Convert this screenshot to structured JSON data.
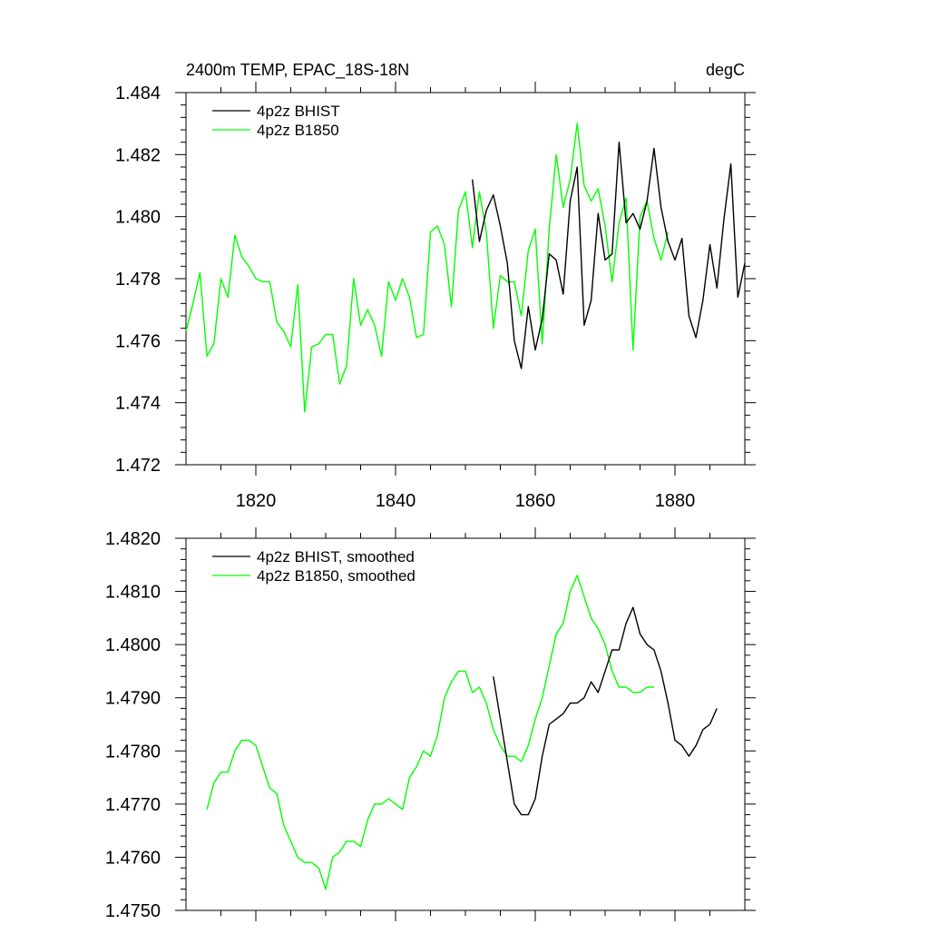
{
  "chart_data": [
    {
      "type": "line",
      "title": "2400m TEMP, EPAC_18S-18N",
      "units": "degC",
      "xlabel": "",
      "ylabel": "",
      "xlim": [
        1810,
        1890
      ],
      "ylim": [
        1.472,
        1.484
      ],
      "x_ticks": [
        1820,
        1840,
        1860,
        1880
      ],
      "x_tick_labels": [
        "1820",
        "1840",
        "1860",
        "1880"
      ],
      "y_ticks": [
        1.472,
        1.474,
        1.476,
        1.478,
        1.48,
        1.482,
        1.484
      ],
      "y_tick_labels": [
        "1.472",
        "1.474",
        "1.476",
        "1.478",
        "1.480",
        "1.482",
        "1.484"
      ],
      "legend": "top-left",
      "series": [
        {
          "name": "4p2z BHIST",
          "color": "#000000",
          "x_start": 1851,
          "x_step": 1,
          "values": [
            1.4812,
            1.4792,
            1.4802,
            1.4807,
            1.4797,
            1.4785,
            1.476,
            1.4751,
            1.4771,
            1.4757,
            1.4767,
            1.4788,
            1.4786,
            1.4775,
            1.4805,
            1.4816,
            1.4765,
            1.4773,
            1.4801,
            1.4786,
            1.4788,
            1.4824,
            1.4798,
            1.4801,
            1.4796,
            1.4805,
            1.4822,
            1.4803,
            1.4792,
            1.4786,
            1.4793,
            1.4768,
            1.4761,
            1.4773,
            1.4791,
            1.4777,
            1.4799,
            1.4817,
            1.4774,
            1.4785
          ]
        },
        {
          "name": "4p2z B1850",
          "color": "#00ff00",
          "x_start": 1810,
          "x_step": 1,
          "values": [
            1.4763,
            1.4772,
            1.4782,
            1.4755,
            1.4759,
            1.478,
            1.4774,
            1.4794,
            1.4787,
            1.4784,
            1.478,
            1.4779,
            1.4779,
            1.4766,
            1.4763,
            1.4758,
            1.4778,
            1.4737,
            1.4758,
            1.4759,
            1.4762,
            1.4762,
            1.4746,
            1.4752,
            1.478,
            1.4765,
            1.477,
            1.4765,
            1.4755,
            1.4779,
            1.4773,
            1.478,
            1.4774,
            1.4761,
            1.4762,
            1.4795,
            1.4797,
            1.4791,
            1.4771,
            1.4802,
            1.4808,
            1.479,
            1.4808,
            1.4795,
            1.4764,
            1.4781,
            1.4779,
            1.4779,
            1.4768,
            1.4789,
            1.4796,
            1.4759,
            1.4796,
            1.482,
            1.4803,
            1.4812,
            1.483,
            1.481,
            1.4805,
            1.4809,
            1.4797,
            1.4779,
            1.4798,
            1.4806,
            1.4757,
            1.48,
            1.4805,
            1.4793,
            1.4786,
            1.4795
          ]
        }
      ]
    },
    {
      "type": "line",
      "title": "",
      "xlabel": "",
      "ylabel": "",
      "xlim": [
        1810,
        1890
      ],
      "ylim": [
        1.475,
        1.482
      ],
      "x_ticks": [
        1820,
        1840,
        1860,
        1880
      ],
      "x_tick_labels": [],
      "y_ticks": [
        1.475,
        1.476,
        1.477,
        1.478,
        1.479,
        1.48,
        1.481,
        1.482
      ],
      "y_tick_labels": [
        "1.4750",
        "1.4760",
        "1.4770",
        "1.4780",
        "1.4790",
        "1.4800",
        "1.4810",
        "1.4820"
      ],
      "legend": "top-left",
      "series": [
        {
          "name": "4p2z BHIST, smoothed",
          "color": "#000000",
          "x_start": 1854,
          "x_step": 1,
          "values": [
            1.4794,
            1.4786,
            1.4778,
            1.477,
            1.4768,
            1.4768,
            1.4771,
            1.4779,
            1.4785,
            1.4786,
            1.4787,
            1.4789,
            1.4789,
            1.479,
            1.4793,
            1.4791,
            1.4795,
            1.4799,
            1.4799,
            1.4804,
            1.4807,
            1.4802,
            1.48,
            1.4799,
            1.4795,
            1.4789,
            1.4782,
            1.4781,
            1.4779,
            1.4781,
            1.4784,
            1.4785,
            1.4788
          ]
        },
        {
          "name": "4p2z B1850, smoothed",
          "color": "#00ff00",
          "x_start": 1813,
          "x_step": 1,
          "values": [
            1.4769,
            1.4774,
            1.4776,
            1.4776,
            1.478,
            1.4782,
            1.4782,
            1.4781,
            1.4777,
            1.4773,
            1.4772,
            1.4766,
            1.4763,
            1.476,
            1.4759,
            1.4759,
            1.4758,
            1.4754,
            1.476,
            1.4761,
            1.4763,
            1.4763,
            1.4762,
            1.4767,
            1.477,
            1.477,
            1.4771,
            1.477,
            1.4769,
            1.4775,
            1.4777,
            1.478,
            1.4779,
            1.4783,
            1.479,
            1.4793,
            1.4795,
            1.4795,
            1.4791,
            1.4792,
            1.4789,
            1.4784,
            1.4781,
            1.4779,
            1.4779,
            1.4778,
            1.4781,
            1.4786,
            1.479,
            1.4796,
            1.4802,
            1.4804,
            1.481,
            1.4813,
            1.4809,
            1.4805,
            1.4803,
            1.48,
            1.4795,
            1.4792,
            1.4792,
            1.4791,
            1.4791,
            1.4792,
            1.4792
          ]
        }
      ]
    }
  ]
}
